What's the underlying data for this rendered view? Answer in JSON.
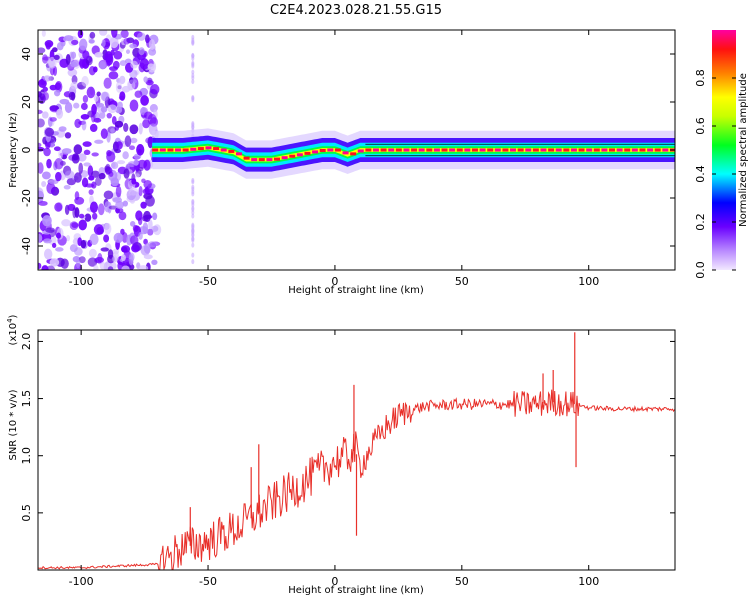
{
  "title": "C2E4.2023.028.21.55.G15",
  "chart_data": [
    {
      "type": "heatmap",
      "xlabel": "Height of straight line (km)",
      "ylabel": "Frequency (Hz)",
      "xlim": [
        -117,
        134
      ],
      "ylim": [
        -50,
        50
      ],
      "x_ticks": [
        "-100",
        "-50",
        "0",
        "50",
        "100"
      ],
      "y_ticks": [
        "-40",
        "-20",
        "0",
        "20",
        "40"
      ],
      "colorbar": {
        "label": "Normalized spectral amplitude",
        "range": [
          0,
          1
        ],
        "ticks": [
          "0.0",
          "0.2",
          "0.4",
          "0.6",
          "0.8"
        ],
        "colormap": [
          "#e6d6ff",
          "#7a00ff",
          "#0000ff",
          "#00ffff",
          "#00ff00",
          "#ffff00",
          "#ff8000",
          "#ff0000",
          "#ff00a0"
        ]
      },
      "noise_region_x": [
        -117,
        -70
      ],
      "ridge": {
        "x": [
          -72,
          -60,
          -50,
          -40,
          -35,
          -25,
          -20,
          -10,
          -5,
          0,
          5,
          10,
          20,
          40,
          60,
          80,
          90,
          100,
          120,
          134
        ],
        "y": [
          0,
          0,
          1,
          -1,
          -4,
          -4,
          -3,
          -1,
          0,
          0,
          -2,
          0,
          0,
          0,
          0,
          0,
          0,
          0,
          0,
          0
        ]
      }
    },
    {
      "type": "line",
      "xlabel": "Height of straight line (km)",
      "ylabel": "SNR (10 * v/v)",
      "y_multiplier": "(x10",
      "y_multiplier_exp": "4",
      "y_multiplier_close": ")",
      "xlim": [
        -117,
        134
      ],
      "ylim": [
        0,
        2.1
      ],
      "x_ticks": [
        "-100",
        "-50",
        "0",
        "50",
        "100"
      ],
      "y_ticks": [
        "0.5",
        "1.0",
        "1.5",
        "2.0"
      ],
      "line_color": "#e8302a",
      "series": [
        {
          "x": [
            -117,
            -100,
            -80,
            -70,
            -65,
            -60,
            -55,
            -50,
            -45,
            -40,
            -35,
            -30,
            -25,
            -20,
            -15,
            -10,
            -5,
            0,
            5,
            8,
            10,
            15,
            20,
            25,
            30,
            35,
            40,
            50,
            60,
            70,
            80,
            85,
            90,
            95,
            100,
            110,
            120,
            134
          ],
          "y": [
            0.02,
            0.02,
            0.04,
            0.05,
            0.12,
            0.2,
            0.22,
            0.25,
            0.3,
            0.35,
            0.42,
            0.5,
            0.58,
            0.65,
            0.72,
            0.8,
            0.88,
            0.95,
            1.0,
            1.05,
            0.9,
            1.1,
            1.25,
            1.35,
            1.4,
            1.43,
            1.44,
            1.45,
            1.45,
            1.45,
            1.45,
            1.47,
            1.46,
            1.45,
            1.42,
            1.41,
            1.41,
            1.41
          ]
        }
      ],
      "spikes": [
        {
          "x": -57,
          "y": 0.55
        },
        {
          "x": -33,
          "y": 0.9
        },
        {
          "x": -30,
          "y": 1.1
        },
        {
          "x": 7.5,
          "y": 1.62
        },
        {
          "x": 8.5,
          "y": 0.3
        },
        {
          "x": 82,
          "y": 1.72
        },
        {
          "x": 86,
          "y": 1.75
        },
        {
          "x": 94.5,
          "y": 2.08
        },
        {
          "x": 95,
          "y": 0.9
        }
      ]
    }
  ]
}
